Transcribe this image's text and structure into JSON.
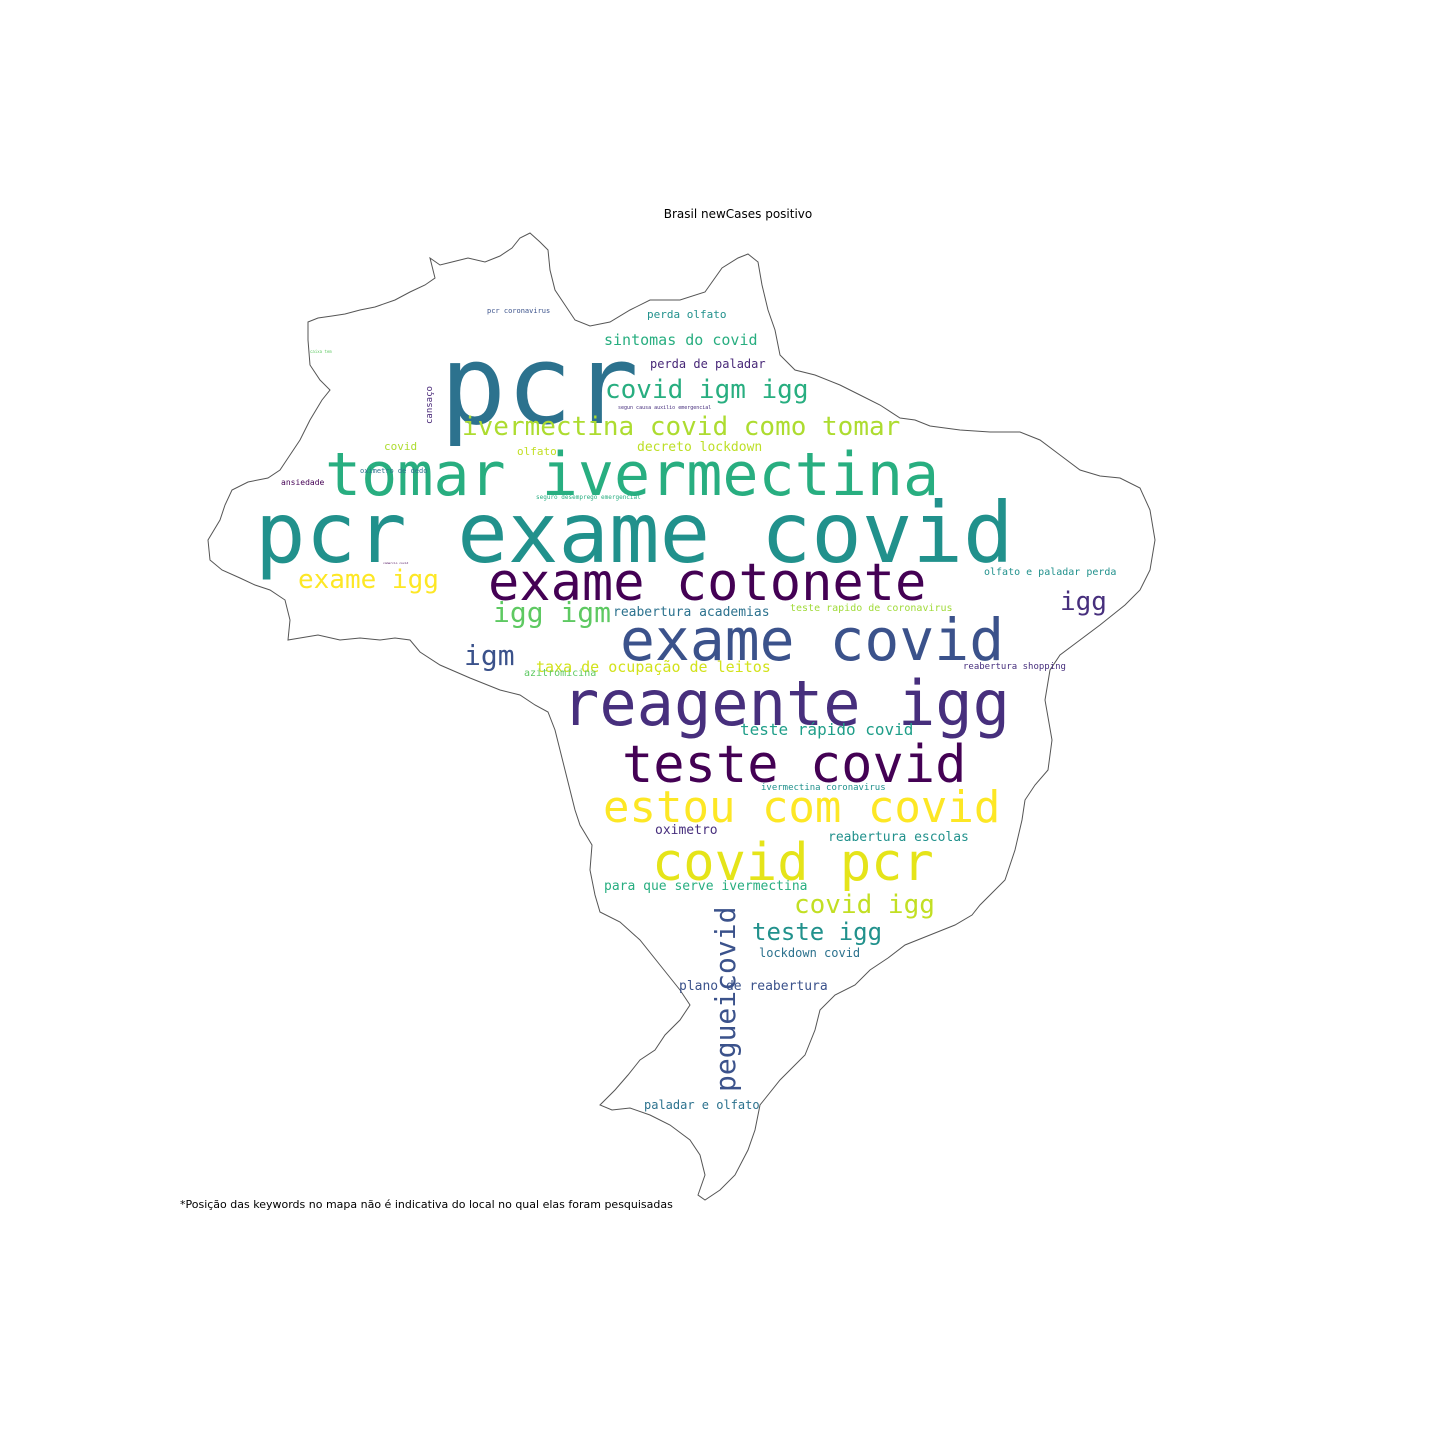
{
  "title": "Brasil newCases positivo",
  "footnote": "*Posição das keywords no mapa não é indicativa do local no qual elas foram pesquisadas",
  "palette": [
    "#440154",
    "#472f7d",
    "#3b528b",
    "#2c728e",
    "#21918c",
    "#28ae80",
    "#5ec962",
    "#addc30",
    "#fde725"
  ],
  "words": [
    {
      "text": "pcr",
      "color": "#2c728e"
    },
    {
      "text": "pcr exame covid",
      "color": "#21918c"
    },
    {
      "text": "tomar ivermectina",
      "color": "#28ae80"
    },
    {
      "text": "exame cotonete",
      "color": "#440154"
    },
    {
      "text": "exame covid",
      "color": "#3b528b"
    },
    {
      "text": "reagente igg",
      "color": "#472f7d"
    },
    {
      "text": "teste covid",
      "color": "#440154"
    },
    {
      "text": "estou com covid",
      "color": "#fde725"
    },
    {
      "text": "covid pcr",
      "color": "#e5e419"
    },
    {
      "text": "ivermectina covid como tomar",
      "color": "#addc30"
    },
    {
      "text": "covid igm igg",
      "color": "#28ae80"
    },
    {
      "text": "exame igg",
      "color": "#fde725"
    },
    {
      "text": "igg igm",
      "color": "#5ec962"
    },
    {
      "text": "igm",
      "color": "#3b528b"
    },
    {
      "text": "igg",
      "color": "#472f7d"
    },
    {
      "text": "pegueicovid",
      "color": "#3b528b"
    },
    {
      "text": "covid igg",
      "color": "#c2df23"
    },
    {
      "text": "teste igg",
      "color": "#21918c"
    },
    {
      "text": "sintomas do covid",
      "color": "#28ae80"
    },
    {
      "text": "perda de paladar",
      "color": "#482878"
    },
    {
      "text": "decreto lockdown",
      "color": "#bddf26"
    },
    {
      "text": "taxa de ocupação de leitos",
      "color": "#d2e21b"
    },
    {
      "text": "teste rápido covid",
      "color": "#1f9e89"
    },
    {
      "text": "reabertura academias",
      "color": "#2c728e"
    },
    {
      "text": "oximetro",
      "color": "#472f7d"
    },
    {
      "text": "reabertura escolas",
      "color": "#21918c"
    },
    {
      "text": "para que serve ivermectina",
      "color": "#28ae80"
    },
    {
      "text": "lockdown covid",
      "color": "#2c728e"
    },
    {
      "text": "plano de reabertura",
      "color": "#3b528b"
    },
    {
      "text": "paladar e olfato",
      "color": "#2c728e"
    },
    {
      "text": "perda olfato",
      "color": "#21918c"
    },
    {
      "text": "olfato e paladar perda",
      "color": "#21918c"
    },
    {
      "text": "teste rapido de coronavirus",
      "color": "#a0da39"
    },
    {
      "text": "azitromicina",
      "color": "#5ec962"
    },
    {
      "text": "reabertura shopping",
      "color": "#472f7d"
    },
    {
      "text": "ivermectina coronavirus",
      "color": "#21918c"
    },
    {
      "text": "covid",
      "color": "#addc30"
    },
    {
      "text": "olfato",
      "color": "#c2df23"
    },
    {
      "text": "ansiedade",
      "color": "#440154"
    },
    {
      "text": "oximetro de dedo",
      "color": "#2c728e"
    },
    {
      "text": "seguro desemprego emergencial",
      "color": "#28ae80"
    },
    {
      "text": "cansaço",
      "color": "#482878"
    },
    {
      "text": "pcr coronavirus",
      "color": "#3b528b"
    },
    {
      "text": "segun causa auxilio emergencial",
      "color": "#472f7d"
    },
    {
      "text": "caixa tem",
      "color": "#5ec962"
    },
    {
      "text": "comercio covid",
      "color": "#440154"
    }
  ]
}
